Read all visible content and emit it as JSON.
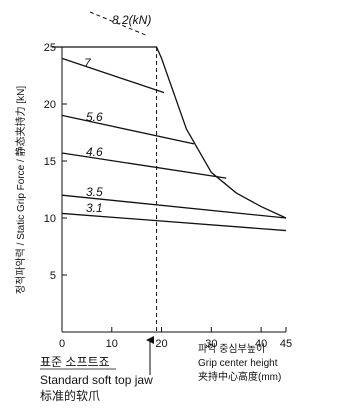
{
  "chart_data": {
    "type": "line",
    "ylabel": "정적파악력 / Static Grip Force / 静态夹持力 [kN]",
    "xlabel": [
      "파악 중심부높이",
      "Grip center height",
      "夹持中心高度(mm)"
    ],
    "xlim": [
      0,
      45
    ],
    "ylim": [
      0,
      25
    ],
    "x_ticks": [
      "0",
      "10",
      "20",
      "30",
      "40",
      "45"
    ],
    "x_tick_values": [
      0,
      10,
      20,
      30,
      40,
      45
    ],
    "y_ticks": [
      "5",
      "10",
      "15",
      "20",
      "25"
    ],
    "y_tick_values": [
      5,
      10,
      15,
      20,
      25
    ],
    "series": [
      {
        "name": "8.2(kN)",
        "x": [
          -2,
          19,
          20,
          25,
          30,
          35,
          40,
          45
        ],
        "y": [
          25,
          25,
          24,
          17.8,
          14,
          12.2,
          11,
          10
        ]
      },
      {
        "name": "7",
        "x": [
          0,
          20.5
        ],
        "y": [
          24,
          21
        ]
      },
      {
        "name": "5.6",
        "x": [
          0,
          26.5
        ],
        "y": [
          19,
          16.5
        ]
      },
      {
        "name": "4.6",
        "x": [
          0,
          33
        ],
        "y": [
          15.7,
          13.5
        ]
      },
      {
        "name": "3.5",
        "x": [
          0,
          45
        ],
        "y": [
          12,
          10
        ]
      },
      {
        "name": "3.1",
        "x": [
          0,
          45
        ],
        "y": [
          10.4,
          8.9
        ]
      }
    ],
    "reference_line_x": 19,
    "annotation": [
      "표준 소프트죠",
      "Standard soft top jaw",
      "标准的软爪"
    ]
  }
}
